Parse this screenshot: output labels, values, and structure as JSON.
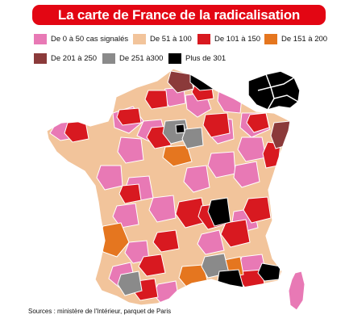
{
  "title": "La carte de France de la radicalisation",
  "legend": [
    {
      "label": "De 0 à 50 cas signalés",
      "color": "#e879b5"
    },
    {
      "label": "De 51 à 100",
      "color": "#f2c49b"
    },
    {
      "label": "De 101 à 150",
      "color": "#d81920"
    },
    {
      "label": "De 151 à 200",
      "color": "#e5761f"
    },
    {
      "label": "De 201 à 250",
      "color": "#8b3a3a"
    },
    {
      "label": "De 251 à300",
      "color": "#8a8a8a"
    },
    {
      "label": "Plus de 301",
      "color": "#000000"
    }
  ],
  "source": "Sources : ministère de l'Intérieur, parquet de Paris"
}
